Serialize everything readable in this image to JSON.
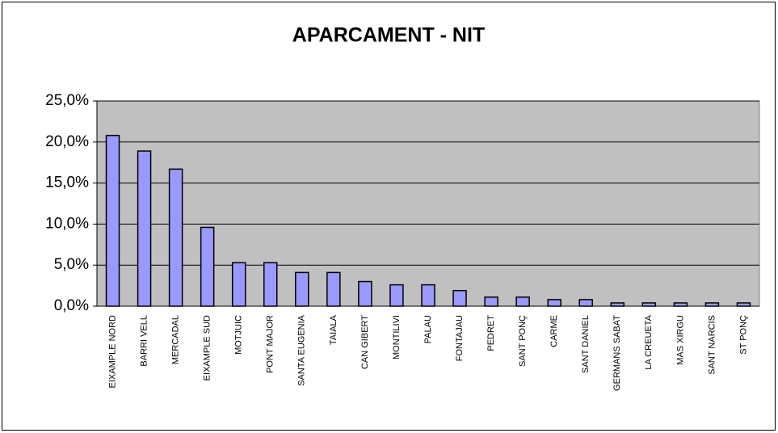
{
  "chart_data": {
    "type": "bar",
    "title": "APARCAMENT -  NIT",
    "categories": [
      "EIXAMPLE NORD",
      "BARRI VELL",
      "MERCADAL",
      "EIXAMPLE SUD",
      "MOTJUIC",
      "PONT MAJOR",
      "SANTA EUGENIA",
      "TAIALA",
      "CAN GIBERT",
      "MONTILIVI",
      "PALAU",
      "FONTAJAU",
      "PEDRET",
      "SANT PONÇ",
      "CARME",
      "SANT DANIEL",
      "GERMANS SABAT",
      "LA CREUETA",
      "MAS XIRGU",
      "SANT NARCIS",
      "ST PONÇ"
    ],
    "values": [
      20.8,
      18.9,
      16.7,
      9.6,
      5.3,
      5.3,
      4.1,
      4.1,
      3.0,
      2.6,
      2.6,
      1.9,
      1.1,
      1.1,
      0.8,
      0.8,
      0.4,
      0.4,
      0.4,
      0.4,
      0.4
    ],
    "color": "#9999ff",
    "ylim": [
      0,
      25
    ],
    "yticks": [
      {
        "value": 0,
        "label": "0,0%"
      },
      {
        "value": 5,
        "label": "5,0%"
      },
      {
        "value": 10,
        "label": "10,0%"
      },
      {
        "value": 15,
        "label": "15,0%"
      },
      {
        "value": 20,
        "label": "20,0%"
      },
      {
        "value": 25,
        "label": "25,0%"
      }
    ],
    "grid": true
  }
}
